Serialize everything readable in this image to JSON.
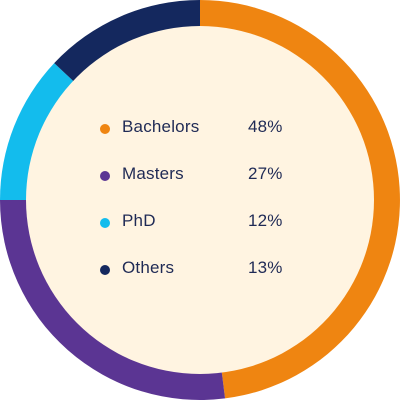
{
  "chart_data": {
    "type": "pie",
    "style": "donut",
    "categories": [
      "Bachelors",
      "Masters",
      "PhD",
      "Others"
    ],
    "values": [
      48,
      27,
      12,
      13
    ],
    "value_labels": [
      "48%",
      "27%",
      "12%",
      "13%"
    ],
    "colors": [
      "#ef8511",
      "#5b3593",
      "#13bced",
      "#14285e"
    ],
    "inner_fill": "#fff4e1",
    "legend_placement": "center",
    "start_angle_deg": 0,
    "direction": "clockwise"
  }
}
